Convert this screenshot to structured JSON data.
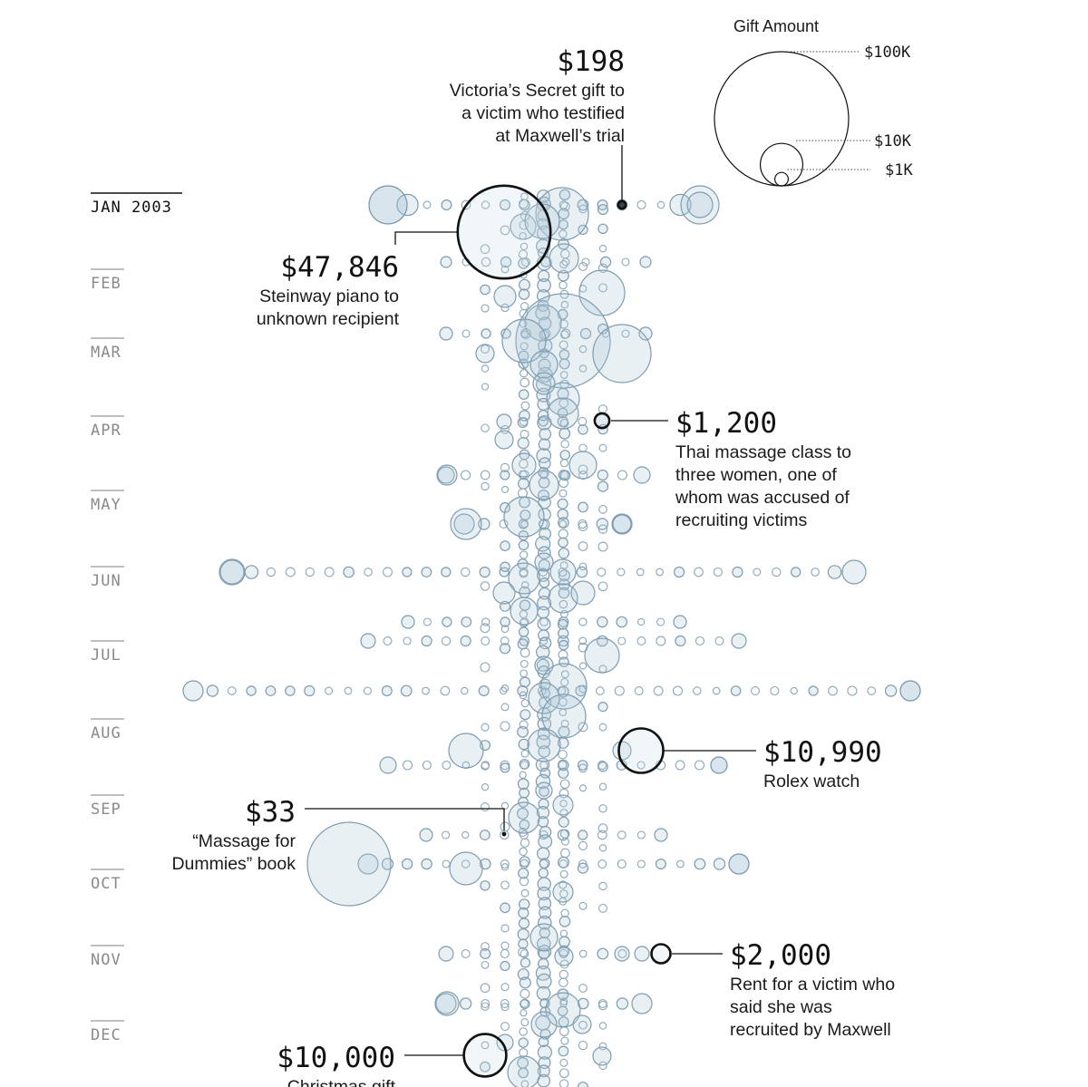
{
  "chart_data": {
    "type": "scatter",
    "subtype": "beeswarm-timeline",
    "time_axis_start": "JAN 2003",
    "months": [
      "JAN 2003",
      "FEB",
      "MAR",
      "APR",
      "MAY",
      "JUN",
      "JUL",
      "AUG",
      "SEP",
      "OCT",
      "NOV",
      "DEC"
    ],
    "size_encoding": "Gift amount in USD (circle area)",
    "legend": {
      "title": "Gift Amount",
      "entries": [
        {
          "label": "$100K",
          "value": 100000
        },
        {
          "label": "$10K",
          "value": 10000
        },
        {
          "label": "$1K",
          "value": 1000
        }
      ]
    },
    "annotations": [
      {
        "amount_label": "$198",
        "value": 198,
        "month_index": 0,
        "description": [
          "Victoria’s Secret gift to",
          "a victim who testified",
          "at Maxwell’s trial"
        ]
      },
      {
        "amount_label": "$47,846",
        "value": 47846,
        "month_index": 0,
        "description": [
          "Steinway piano to",
          "unknown recipient"
        ]
      },
      {
        "amount_label": "$1,200",
        "value": 1200,
        "month_index": 3,
        "description": [
          "Thai massage class to",
          "three women, one of",
          "whom was accused of",
          "recruiting victims"
        ]
      },
      {
        "amount_label": "$10,990",
        "value": 10990,
        "month_index": 7,
        "description": [
          "Rolex watch"
        ]
      },
      {
        "amount_label": "$33",
        "value": 33,
        "month_index": 8,
        "description": [
          "“Massage for",
          "Dummies” book"
        ]
      },
      {
        "amount_label": "$2,000",
        "value": 2000,
        "month_index": 10,
        "description": [
          "Rent for a victim who",
          "said she was",
          "recruited by Maxwell"
        ]
      },
      {
        "amount_label": "$10,000",
        "value": 10000,
        "month_index": 11,
        "description": [
          "Christmas gift"
        ]
      }
    ]
  }
}
